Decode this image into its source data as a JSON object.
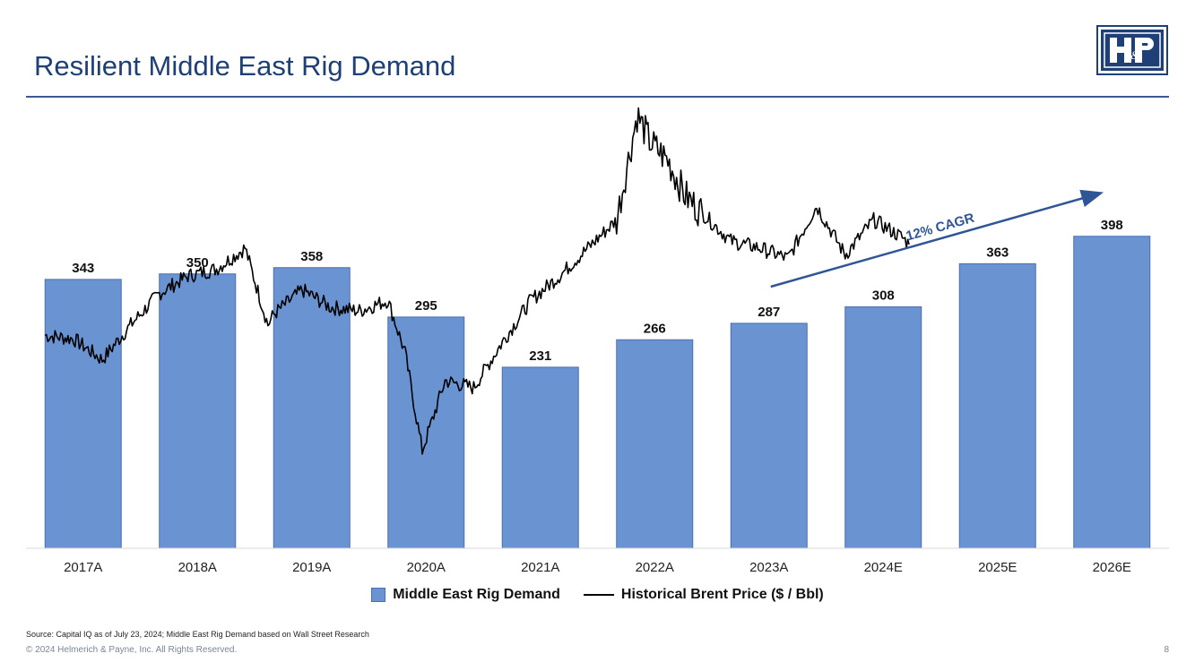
{
  "page": {
    "title": "Resilient Middle East Rig Demand",
    "source_note": "Source: Capital IQ as of July 23, 2024; Middle East Rig Demand based on Wall Street Research",
    "copyright": "© 2024 Helmerich & Payne, Inc.  All Rights Reserved.",
    "page_number": "8",
    "logo_icon": "hp-logo-icon",
    "colors": {
      "title": "#1f3f77",
      "bar": "#6a93d2",
      "bar_border": "#4a6fb0",
      "line": "#000000",
      "arrow": "#2f5597"
    }
  },
  "chart_data": {
    "type": "bar",
    "categories": [
      "2017A",
      "2018A",
      "2019A",
      "2020A",
      "2021A",
      "2022A",
      "2023A",
      "2024E",
      "2025E",
      "2026E"
    ],
    "series": [
      {
        "name": "Middle East Rig Demand",
        "type": "bar",
        "values": [
          343,
          350,
          358,
          295,
          231,
          266,
          287,
          308,
          363,
          398
        ]
      },
      {
        "name": "Historical Brent Price ($ / Bbl)",
        "type": "line",
        "x": [
          2017.0,
          2017.25,
          2017.5,
          2017.75,
          2018.0,
          2018.25,
          2018.5,
          2018.75,
          2018.95,
          2019.0,
          2019.25,
          2019.5,
          2019.75,
          2020.0,
          2020.15,
          2020.3,
          2020.5,
          2020.75,
          2021.0,
          2021.25,
          2021.5,
          2021.75,
          2022.0,
          2022.18,
          2022.3,
          2022.45,
          2022.6,
          2022.75,
          2023.0,
          2023.25,
          2023.5,
          2023.75,
          2024.0,
          2024.25,
          2024.5,
          2024.56
        ],
        "values": [
          55,
          54,
          48,
          58,
          67,
          72,
          74,
          80,
          58,
          61,
          68,
          63,
          62,
          65,
          50,
          22,
          42,
          40,
          53,
          65,
          72,
          80,
          88,
          118,
          110,
          105,
          95,
          90,
          82,
          80,
          77,
          92,
          78,
          88,
          83,
          81
        ]
      }
    ],
    "annotation": "12% CAGR",
    "legend_position": "bottom",
    "grid": false
  }
}
